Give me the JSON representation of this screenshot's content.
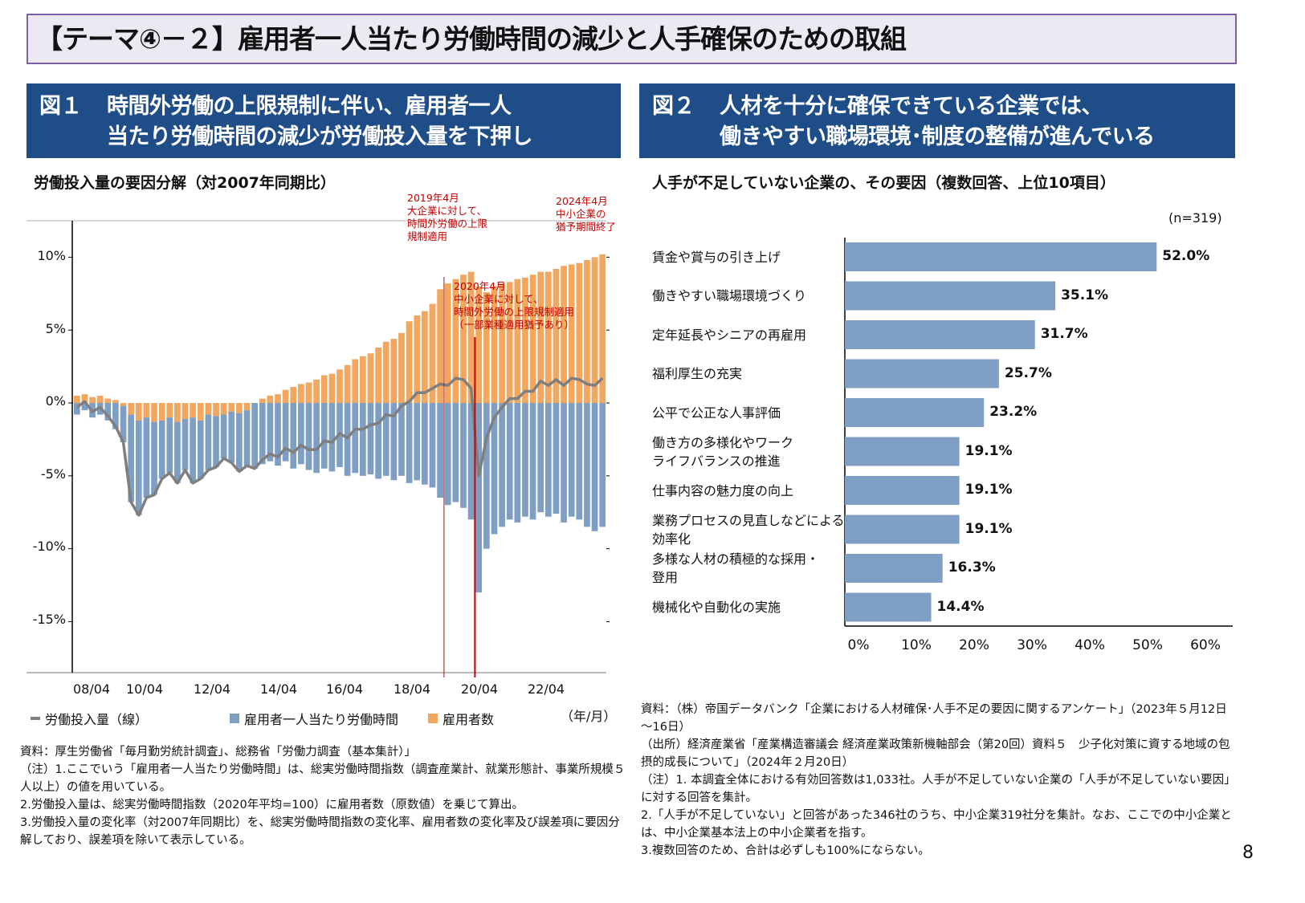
{
  "page": {
    "title": "【テーマ④－２】雇用者一人当たり労働時間の減少と人手確保のための取組",
    "page_number": "8"
  },
  "fig1": {
    "number": "図１",
    "heading": "時間外労働の上限規制に伴い、雇用者一人\n当たり労働時間の減少が労働投入量を下押し",
    "subtitle": "労働投入量の要因分解（対2007年同期比）",
    "annotations": [
      {
        "text": "2019年4月\n大企業に対して、\n時間外労働の上限\n規制適用",
        "date": "2019/04"
      },
      {
        "text": "2020年4月\n中小企業に対して、\n時間外労働の上限規制適用\n（一部業種適用猶予あり）",
        "date": "2020/04"
      },
      {
        "text": "2024年4月\n中小企業の\n猶予期間終了",
        "date": "2024/04"
      }
    ],
    "x_unit": "（年/月）",
    "legend": [
      {
        "label": "労働投入量（線）",
        "color": "#7f7f7f"
      },
      {
        "label": "雇用者一人当たり労働時間",
        "color": "#7f9ec4"
      },
      {
        "label": "雇用者数",
        "color": "#f2a65e"
      }
    ],
    "notes": "資料：厚生労働省「毎月勤労統計調査」、総務省「労働力調査（基本集計）」\n（注）1.ここでいう「雇用者一人当たり労働時間」は、総実労働時間指数（調査産業計、就業形態計、事業所規模５人以上）の値を用いている。\n2.労働投入量は、総実労働時間指数（2020年平均=100）に雇用者数（原数値）を乗じて算出。\n3.労働投入量の変化率（対2007年同期比）を、総実労働時間指数の変化率、雇用者数の変化率及び誤差項に要因分解しており、誤差項を除いて表示している。"
  },
  "fig2": {
    "number": "図２",
    "heading": "人材を十分に確保できている企業では、\n働きやすい職場環境･制度の整備が進んでいる",
    "subtitle": "人手が不足していない企業の、その要因（複数回答、上位10項目）",
    "n_label": "(n=319)",
    "notes": "資料：（株）帝国データバンク「企業における人材確保･人手不足の要因に関するアンケート」（2023年５月12日～16日）\n（出所）経済産業省「産業構造審議会 経済産業政策新機軸部会（第20回）資料５　少子化対策に資する地域の包摂的成長について」（2024年２月20日）\n（注）1. 本調査全体における有効回答数は1,033社。人手が不足していない企業の「人手が不足していない要因」に対する回答を集計。\n2.「人手が不足していない」と回答があった346社のうち、中小企業319社分を集計。なお、ここでの中小企業とは、中小企業基本法上の中小企業者を指す。\n3.複数回答のため、合計は必ずしも100%にならない。"
  },
  "chart_data": [
    {
      "type": "bar+line",
      "title": "労働投入量の要因分解（対2007年同期比）",
      "xlabel": "（年/月）",
      "ylabel": "",
      "ylim": [
        -18.5,
        12.5
      ],
      "yticks": [
        "10%",
        "5%",
        "0%",
        "-5%",
        "-10%",
        "-15%"
      ],
      "ytick_values": [
        10,
        5,
        0,
        -5,
        -10,
        -15
      ],
      "xticks": [
        "08/04",
        "10/04",
        "12/04",
        "14/04",
        "16/04",
        "18/04",
        "20/04",
        "22/04"
      ],
      "x": [
        "2007/04",
        "2007/07",
        "2007/10",
        "2008/01",
        "2008/04",
        "2008/07",
        "2008/10",
        "2009/01",
        "2009/04",
        "2009/07",
        "2009/10",
        "2010/01",
        "2010/04",
        "2010/07",
        "2010/10",
        "2011/01",
        "2011/04",
        "2011/07",
        "2011/10",
        "2012/01",
        "2012/04",
        "2012/07",
        "2012/10",
        "2013/01",
        "2013/04",
        "2013/07",
        "2013/10",
        "2014/01",
        "2014/04",
        "2014/07",
        "2014/10",
        "2015/01",
        "2015/04",
        "2015/07",
        "2015/10",
        "2016/01",
        "2016/04",
        "2016/07",
        "2016/10",
        "2017/01",
        "2017/04",
        "2017/07",
        "2017/10",
        "2018/01",
        "2018/04",
        "2018/07",
        "2018/10",
        "2019/01",
        "2019/04",
        "2019/07",
        "2019/10",
        "2020/01",
        "2020/04",
        "2020/07",
        "2020/10",
        "2021/01",
        "2021/04",
        "2021/07",
        "2021/10",
        "2022/01",
        "2022/04",
        "2022/07",
        "2022/10",
        "2023/01",
        "2023/04",
        "2023/07",
        "2023/10",
        "2024/01",
        "2024/04"
      ],
      "series": [
        {
          "name": "雇用者数",
          "kind": "bar",
          "color": "#f2a65e",
          "values": [
            0.5,
            0.6,
            0.4,
            0.5,
            0.3,
            0.2,
            -0.2,
            -0.8,
            -1.2,
            -1.0,
            -1.3,
            -1.2,
            -1.0,
            -1.3,
            -1.1,
            -1.0,
            -1.2,
            -0.8,
            -0.9,
            -0.8,
            -0.6,
            -0.7,
            -0.5,
            0.0,
            0.3,
            0.5,
            0.6,
            0.9,
            1.1,
            1.3,
            1.4,
            1.6,
            1.9,
            2.0,
            2.3,
            2.6,
            3.0,
            3.2,
            3.4,
            3.8,
            4.2,
            4.4,
            4.8,
            5.6,
            6.0,
            6.3,
            6.8,
            7.8,
            8.2,
            8.5,
            8.8,
            9.0,
            8.0,
            7.6,
            8.0,
            8.2,
            8.3,
            8.5,
            8.6,
            8.8,
            9.0,
            9.0,
            9.2,
            9.4,
            9.5,
            9.6,
            9.8,
            10.0,
            10.2
          ]
        },
        {
          "name": "雇用者一人当たり労働時間",
          "kind": "bar",
          "color": "#7f9ec4",
          "values": [
            -0.8,
            -0.5,
            -1.0,
            -0.8,
            -1.2,
            -1.8,
            -2.5,
            -6.0,
            -6.5,
            -5.5,
            -5.0,
            -4.0,
            -3.8,
            -4.2,
            -3.5,
            -4.5,
            -4.0,
            -3.8,
            -3.5,
            -3.0,
            -3.5,
            -4.0,
            -3.8,
            -4.5,
            -4.2,
            -4.0,
            -4.3,
            -4.0,
            -4.5,
            -4.2,
            -4.6,
            -4.8,
            -4.5,
            -4.7,
            -4.4,
            -5.0,
            -4.8,
            -5.0,
            -4.9,
            -5.2,
            -5.0,
            -5.3,
            -5.0,
            -5.5,
            -5.3,
            -5.6,
            -5.8,
            -6.5,
            -7.0,
            -6.8,
            -7.2,
            -8.0,
            -13.0,
            -10.0,
            -9.0,
            -8.5,
            -8.0,
            -8.2,
            -7.8,
            -8.0,
            -7.5,
            -7.8,
            -7.6,
            -8.2,
            -7.8,
            -8.0,
            -8.5,
            -8.8,
            -8.5
          ]
        },
        {
          "name": "労働投入量（線）",
          "kind": "line",
          "color": "#7f7f7f",
          "values": [
            -0.3,
            0.1,
            -0.6,
            -0.3,
            -0.9,
            -1.6,
            -2.7,
            -6.8,
            -7.7,
            -6.5,
            -6.3,
            -5.2,
            -4.8,
            -5.5,
            -4.6,
            -5.5,
            -5.2,
            -4.6,
            -4.4,
            -3.8,
            -4.1,
            -4.7,
            -4.3,
            -4.5,
            -3.9,
            -3.5,
            -3.7,
            -3.1,
            -3.4,
            -2.9,
            -3.2,
            -3.2,
            -2.6,
            -2.7,
            -2.1,
            -2.4,
            -1.8,
            -1.8,
            -1.5,
            -1.4,
            -0.8,
            -0.9,
            -0.2,
            0.1,
            0.7,
            0.7,
            1.0,
            1.3,
            1.2,
            1.7,
            1.6,
            1.0,
            -5.0,
            -2.4,
            -1.0,
            -0.3,
            0.3,
            0.3,
            0.8,
            0.8,
            1.5,
            1.2,
            1.6,
            1.2,
            1.7,
            1.6,
            1.3,
            1.2,
            1.7
          ]
        }
      ],
      "vlines": [
        "2019/04",
        "2020/04"
      ]
    },
    {
      "type": "bar",
      "orientation": "horizontal",
      "title": "人手が不足していない企業の、その要因（複数回答、上位10項目）",
      "categories": [
        "賃金や賞与の引き上げ",
        "働きやすい職場環境づくり",
        "定年延長やシニアの再雇用",
        "福利厚生の充実",
        "公平で公正な人事評価",
        "働き方の多様化やワーク\nライフバランスの推進",
        "仕事内容の魅力度の向上",
        "業務プロセスの見直しなどによる\n効率化",
        "多様な人材の積極的な採用・\n登用",
        "機械化や自動化の実施"
      ],
      "values": [
        52.0,
        35.1,
        31.7,
        25.7,
        23.2,
        19.1,
        19.1,
        19.1,
        16.3,
        14.4
      ],
      "value_labels": [
        "52.0%",
        "35.1%",
        "31.7%",
        "25.7%",
        "23.2%",
        "19.1%",
        "19.1%",
        "19.1%",
        "16.3%",
        "14.4%"
      ],
      "xlim": [
        0,
        60
      ],
      "xticks": [
        "0%",
        "10%",
        "20%",
        "30%",
        "40%",
        "50%",
        "60%"
      ],
      "color": "#7f9ec4"
    }
  ]
}
